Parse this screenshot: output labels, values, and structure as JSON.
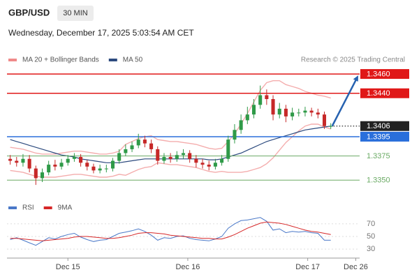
{
  "header": {
    "symbol": "GBP/USD",
    "interval": "30 MIN",
    "timestamp": "Wednesday, December 17, 2025 5:03:54 AM CET",
    "credit": "Research © 2025 Trading Central"
  },
  "chart_data": [
    {
      "type": "candlestick",
      "xlim": [
        -0.5,
        54.5
      ],
      "ylim": [
        1.3327,
        1.3468
      ],
      "up_color": "#2f9a48",
      "down_color": "#c62828",
      "open": [
        1.3372,
        1.337,
        1.3368,
        1.3372,
        1.3362,
        1.3352,
        1.3358,
        1.3366,
        1.3364,
        1.3368,
        1.3372,
        1.3374,
        1.3368,
        1.3364,
        1.336,
        1.3362,
        1.3362,
        1.337,
        1.3378,
        1.3382,
        1.3386,
        1.3392,
        1.3388,
        1.3382,
        1.337,
        1.3374,
        1.3372,
        1.3376,
        1.3378,
        1.3372,
        1.3368,
        1.3366,
        1.3364,
        1.3368,
        1.3372,
        1.3392,
        1.3402,
        1.3412,
        1.3418,
        1.3428,
        1.3438,
        1.3434,
        1.3418,
        1.3424,
        1.3416,
        1.342,
        1.342,
        1.3422,
        1.342,
        1.3418,
        1.3406
      ],
      "high": [
        1.3376,
        1.3374,
        1.3377,
        1.3376,
        1.3365,
        1.3362,
        1.337,
        1.3371,
        1.3372,
        1.3376,
        1.3378,
        1.3377,
        1.3371,
        1.3367,
        1.3366,
        1.3366,
        1.3373,
        1.3382,
        1.3387,
        1.339,
        1.3398,
        1.3396,
        1.3392,
        1.3385,
        1.3378,
        1.3378,
        1.338,
        1.3382,
        1.3381,
        1.3376,
        1.3372,
        1.337,
        1.3372,
        1.3376,
        1.3396,
        1.3408,
        1.3418,
        1.3426,
        1.3434,
        1.3448,
        1.3444,
        1.3438,
        1.343,
        1.3428,
        1.3425,
        1.3424,
        1.3426,
        1.3425,
        1.3424,
        1.3421,
        1.3409
      ],
      "low": [
        1.3366,
        1.3364,
        1.3364,
        1.3358,
        1.3345,
        1.3348,
        1.3355,
        1.336,
        1.3361,
        1.3365,
        1.3369,
        1.3364,
        1.336,
        1.3357,
        1.3357,
        1.3358,
        1.3359,
        1.3367,
        1.3375,
        1.3379,
        1.3383,
        1.3384,
        1.3378,
        1.3366,
        1.3367,
        1.3368,
        1.3369,
        1.3372,
        1.3368,
        1.3363,
        1.3362,
        1.336,
        1.3361,
        1.3365,
        1.3369,
        1.3388,
        1.3398,
        1.3408,
        1.3414,
        1.3424,
        1.3428,
        1.3412,
        1.3414,
        1.341,
        1.3412,
        1.3416,
        1.3416,
        1.3416,
        1.3414,
        1.3403,
        1.3403
      ],
      "close": [
        1.337,
        1.3368,
        1.3372,
        1.3362,
        1.3352,
        1.3358,
        1.3366,
        1.3364,
        1.3368,
        1.3372,
        1.3374,
        1.3368,
        1.3364,
        1.336,
        1.3362,
        1.3362,
        1.337,
        1.3378,
        1.3382,
        1.3386,
        1.3392,
        1.3388,
        1.3382,
        1.337,
        1.3374,
        1.3372,
        1.3376,
        1.3378,
        1.3372,
        1.3368,
        1.3366,
        1.3364,
        1.3368,
        1.3372,
        1.3392,
        1.3402,
        1.3412,
        1.3418,
        1.3428,
        1.3438,
        1.3434,
        1.3418,
        1.3424,
        1.3416,
        1.342,
        1.342,
        1.3422,
        1.342,
        1.3418,
        1.3406,
        1.3406
      ],
      "series": [
        {
          "name": "MA 20 + Bollinger Bands",
          "color": "#f08a8a",
          "upper": [
            1.3384,
            1.3383,
            1.3382,
            1.338,
            1.3378,
            1.3377,
            1.3377,
            1.3377,
            1.3378,
            1.3379,
            1.338,
            1.338,
            1.3379,
            1.3378,
            1.3377,
            1.3377,
            1.3378,
            1.338,
            1.3387,
            1.339,
            1.3393,
            1.3395,
            1.3396,
            1.3392,
            1.3391,
            1.339,
            1.339,
            1.3389,
            1.3388,
            1.3387,
            1.3385,
            1.3383,
            1.3382,
            1.3383,
            1.339,
            1.3398,
            1.3408,
            1.3419,
            1.3431,
            1.3443,
            1.3451,
            1.3453,
            1.3453,
            1.3449,
            1.3447,
            1.3445,
            1.3442,
            1.344,
            1.3438,
            1.3437,
            1.3435
          ],
          "lower": [
            1.336,
            1.3359,
            1.3358,
            1.3356,
            1.3354,
            1.3353,
            1.3353,
            1.3353,
            1.3354,
            1.3355,
            1.3356,
            1.3356,
            1.3355,
            1.3354,
            1.3353,
            1.3353,
            1.3354,
            1.3356,
            1.3355,
            1.3358,
            1.3361,
            1.3363,
            1.3364,
            1.3368,
            1.3367,
            1.3366,
            1.3366,
            1.3365,
            1.3364,
            1.3363,
            1.3361,
            1.3359,
            1.3358,
            1.3359,
            1.3358,
            1.3358,
            1.3358,
            1.3359,
            1.3361,
            1.3363,
            1.3367,
            1.3373,
            1.3381,
            1.3389,
            1.3395,
            1.3401,
            1.3406,
            1.3408,
            1.3408,
            1.3405,
            1.3403
          ]
        },
        {
          "name": "MA 50",
          "color": "#2c4a7e",
          "values": [
            1.3392,
            1.339,
            1.3388,
            1.3386,
            1.3384,
            1.3382,
            1.338,
            1.3378,
            1.3376,
            1.3375,
            1.3374,
            1.3372,
            1.3371,
            1.337,
            1.3369,
            1.3368,
            1.3368,
            1.3368,
            1.3369,
            1.337,
            1.3371,
            1.3372,
            1.3372,
            1.3372,
            1.3372,
            1.3372,
            1.3372,
            1.3372,
            1.3372,
            1.3372,
            1.3372,
            1.3371,
            1.3371,
            1.3372,
            1.3374,
            1.3376,
            1.3378,
            1.3381,
            1.3384,
            1.3387,
            1.339,
            1.3392,
            1.3394,
            1.3396,
            1.3398,
            1.34,
            1.3402,
            1.3403,
            1.3404,
            1.3405,
            1.3406
          ]
        }
      ],
      "levels": {
        "values": [
          1.346,
          1.344,
          1.3395,
          1.3375,
          1.335
        ],
        "value_labels": [
          "1.3460",
          "1.3440",
          "1.3395",
          "1.3375",
          "1.3350"
        ],
        "colors": [
          "#e01818",
          "#e01818",
          "#2a6fdb",
          "#6aaa64",
          "#6aaa64"
        ],
        "styles": [
          "box",
          "box",
          "box",
          "text",
          "text"
        ]
      },
      "last_price": {
        "value": 1.3406,
        "label": "1.3406",
        "color": "#222222"
      },
      "arrow_color": "#2762b0"
    },
    {
      "type": "line",
      "xlim": [
        -0.5,
        54.5
      ],
      "ylim": [
        18,
        82
      ],
      "yticks": [
        30,
        50,
        70
      ],
      "xticks": [
        {
          "value": 9,
          "label": "Dec 15"
        },
        {
          "value": 27.7,
          "label": "Dec 16"
        },
        {
          "value": 46.4,
          "label": "Dec 17"
        },
        {
          "value": 53.9,
          "label": "Dec 26"
        }
      ],
      "series": [
        {
          "name": "RSI",
          "color": "#4a78c8",
          "values": [
            45,
            48,
            44,
            40,
            36,
            42,
            48,
            46,
            50,
            53,
            55,
            49,
            45,
            42,
            44,
            45,
            50,
            55,
            57,
            59,
            62,
            58,
            52,
            44,
            48,
            47,
            50,
            51,
            47,
            45,
            44,
            43,
            46,
            50,
            63,
            70,
            75,
            76,
            78,
            80,
            74,
            60,
            62,
            56,
            58,
            57,
            58,
            56,
            55,
            44,
            44
          ]
        },
        {
          "name": "9MA",
          "color": "#d62728",
          "values": [
            47,
            47,
            46,
            45,
            44,
            43,
            44,
            45,
            46,
            47,
            49,
            50,
            50,
            49,
            48,
            47,
            47,
            48,
            50,
            52,
            55,
            56,
            56,
            55,
            54,
            52,
            51,
            50,
            49,
            48,
            47,
            47,
            46,
            46,
            49,
            53,
            58,
            63,
            67,
            71,
            73,
            72,
            71,
            69,
            66,
            63,
            60,
            58,
            57,
            55,
            53
          ]
        }
      ]
    }
  ]
}
